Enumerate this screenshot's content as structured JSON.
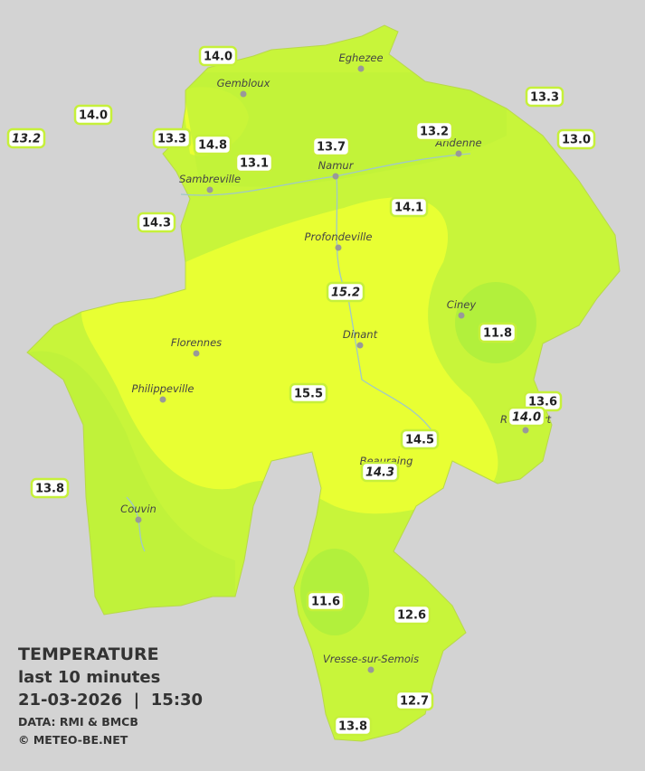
{
  "title": "TEMPERATURE",
  "subtitle": "last 10 minutes",
  "timestamp": "21-03-2026  |  15:30",
  "source": "DATA: RMI & BMCB",
  "copyright": "© METEO-BE.NET",
  "towns": [
    "Eghezee",
    "Gembloux",
    "Andenne",
    "Namur",
    "Sambreville",
    "Profondeville",
    "Ciney",
    "Dinant",
    "Florennes",
    "Philippeville",
    "Beauraing",
    "Rochefort",
    "Couvin",
    "Vresse-sur-Semois"
  ],
  "stations": [
    "14.0",
    "14.0",
    "13.2",
    "13.3",
    "14.8",
    "13.1",
    "13.7",
    "13.2",
    "13.3",
    "13.0",
    "14.3",
    "14.1",
    "15.2",
    "11.8",
    "15.5",
    "13.6",
    "14.0",
    "14.5",
    "14.3",
    "13.8",
    "11.6",
    "12.6",
    "12.7",
    "13.8"
  ]
}
